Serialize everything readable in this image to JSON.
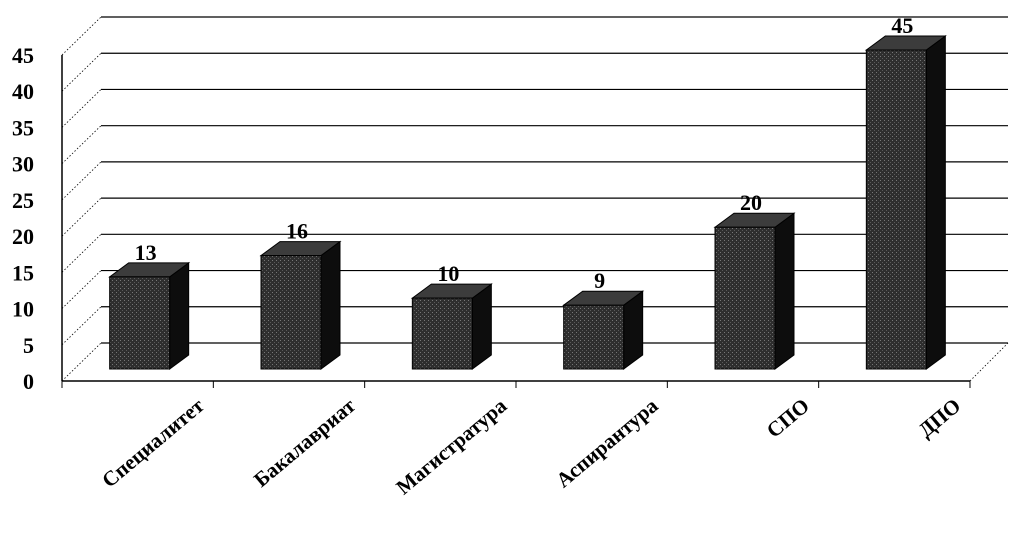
{
  "chart_data": {
    "type": "bar",
    "style": "3d-column",
    "categories": [
      "Специалитет",
      "Бакалавриат",
      "Магистратура",
      "Аспирантура",
      "СПО",
      "ДПО"
    ],
    "values": [
      13,
      16,
      10,
      9,
      20,
      45
    ],
    "data_labels": [
      "13",
      "16",
      "10",
      "9",
      "20",
      "45"
    ],
    "y_ticks": [
      "0",
      "5",
      "10",
      "15",
      "20",
      "25",
      "30",
      "35",
      "40",
      "45"
    ],
    "ylim": [
      0,
      45
    ],
    "y_step": 5,
    "grid": true,
    "legend": "none",
    "title": "",
    "xlabel": "",
    "ylabel": "",
    "colors": {
      "bar_front": "#2e2e2e",
      "bar_side": "#0d0d0d",
      "bar_top": "#3c3c3c",
      "grid": "#000000"
    }
  }
}
